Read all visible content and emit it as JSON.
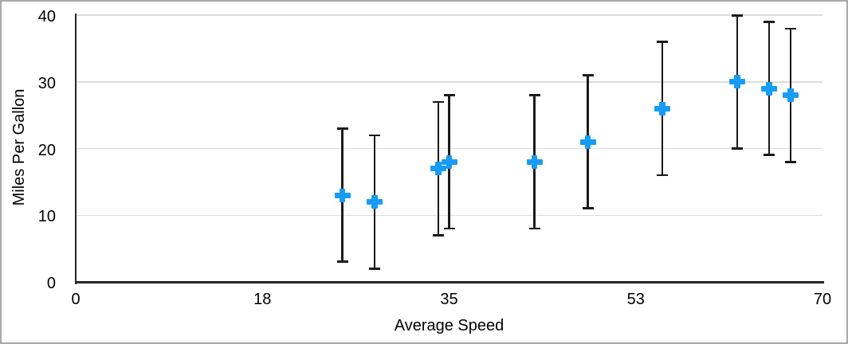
{
  "figure": {
    "border_color": "#a9a9a9",
    "background_color": "#ffffff"
  },
  "chart_data": {
    "type": "scatter",
    "title": "",
    "xlabel": "Average Speed",
    "ylabel": "Miles Per Gallon",
    "xlim": [
      0,
      70
    ],
    "ylim": [
      0,
      40
    ],
    "x_tick_positions": [
      0,
      17.5,
      35,
      52.5,
      70
    ],
    "x_tick_labels": [
      "0",
      "18",
      "35",
      "53",
      "70"
    ],
    "y_tick_positions": [
      0,
      10,
      20,
      30,
      40
    ],
    "y_tick_labels": [
      "0",
      "10",
      "20",
      "30",
      "40"
    ],
    "grid": "horizontal",
    "legend": "none",
    "series": [
      {
        "marker_shape": "plus",
        "marker_color": "#169cf4",
        "points": [
          {
            "x": 25,
            "y": 13
          },
          {
            "x": 28,
            "y": 12
          },
          {
            "x": 34,
            "y": 17
          },
          {
            "x": 35,
            "y": 18
          },
          {
            "x": 43,
            "y": 18
          },
          {
            "x": 48,
            "y": 21
          },
          {
            "x": 55,
            "y": 26
          },
          {
            "x": 62,
            "y": 30
          },
          {
            "x": 65,
            "y": 29
          },
          {
            "x": 67,
            "y": 28
          }
        ],
        "error_bars": {
          "mode": "fixed",
          "value": 10,
          "direction": "both",
          "color": "#1a1a1a"
        }
      }
    ],
    "axis_color": "#262626",
    "gridline_color": "#dcdcdc",
    "tick_label_color": "#000000"
  }
}
